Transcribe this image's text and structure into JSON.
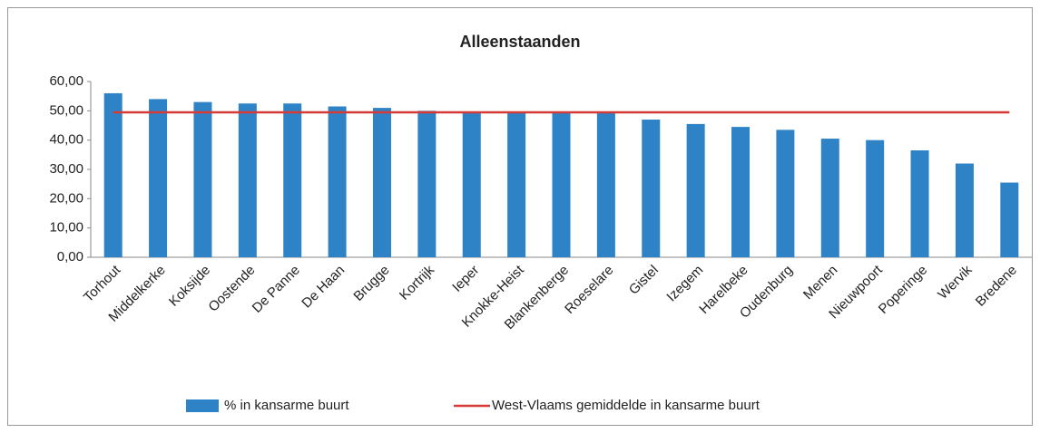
{
  "chart_data": {
    "type": "bar",
    "title": "Alleenstaanden",
    "categories": [
      "Torhout",
      "Middelkerke",
      "Koksijde",
      "Oostende",
      "De Panne",
      "De Haan",
      "Brugge",
      "Kortrijk",
      "Ieper",
      "Knokke-Heist",
      "Blankenberge",
      "Roeselare",
      "Gistel",
      "Izegem",
      "Harelbeke",
      "Oudenburg",
      "Menen",
      "Nieuwpoort",
      "Poperinge",
      "Wervik",
      "Bredene"
    ],
    "series": [
      {
        "name": "% in kansarme buurt",
        "color": "#2e83c6",
        "type": "bar",
        "values": [
          56,
          54,
          53,
          52.5,
          52.5,
          51.5,
          51,
          50,
          49.5,
          49.5,
          49.5,
          49.5,
          47,
          45.5,
          44.5,
          43.5,
          40.5,
          40,
          36.5,
          32,
          25.5
        ]
      },
      {
        "name": "West-Vlaams gemiddelde in kansarme buurt",
        "color": "#d63a36",
        "type": "line",
        "values": [
          49.5,
          49.5,
          49.5,
          49.5,
          49.5,
          49.5,
          49.5,
          49.5,
          49.5,
          49.5,
          49.5,
          49.5,
          49.5,
          49.5,
          49.5,
          49.5,
          49.5,
          49.5,
          49.5,
          49.5,
          49.5
        ]
      }
    ],
    "ylim": [
      0,
      60
    ],
    "yticks": [
      {
        "value": 0,
        "label": "0,00"
      },
      {
        "value": 10,
        "label": "10,00"
      },
      {
        "value": 20,
        "label": "20,00"
      },
      {
        "value": 30,
        "label": "30,00"
      },
      {
        "value": 40,
        "label": "40,00"
      },
      {
        "value": 50,
        "label": "50,00"
      },
      {
        "value": 60,
        "label": "60,00"
      }
    ],
    "legend": "bottom"
  }
}
